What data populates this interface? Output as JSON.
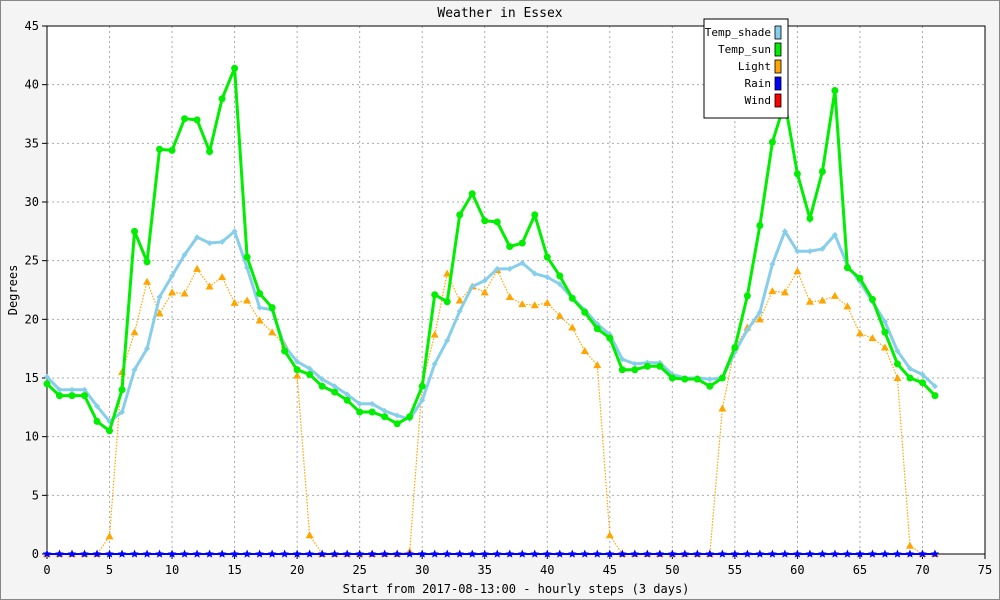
{
  "chart_data": {
    "type": "line",
    "title": "Weather in Essex",
    "xlabel": "Start from 2017-08-13:00 - hourly steps (3 days)",
    "ylabel": "Degrees",
    "xlim": [
      0,
      75
    ],
    "ylim": [
      0,
      45
    ],
    "xticks": [
      0,
      5,
      10,
      15,
      20,
      25,
      30,
      35,
      40,
      45,
      50,
      55,
      60,
      65,
      70,
      75
    ],
    "yticks": [
      0,
      5,
      10,
      15,
      20,
      25,
      30,
      35,
      40,
      45
    ],
    "grid": true,
    "legend_position": "top-right",
    "x": [
      0,
      1,
      2,
      3,
      4,
      5,
      6,
      7,
      8,
      9,
      10,
      11,
      12,
      13,
      14,
      15,
      16,
      17,
      18,
      19,
      20,
      21,
      22,
      23,
      24,
      25,
      26,
      27,
      28,
      29,
      30,
      31,
      32,
      33,
      34,
      35,
      36,
      37,
      38,
      39,
      40,
      41,
      42,
      43,
      44,
      45,
      46,
      47,
      48,
      49,
      50,
      51,
      52,
      53,
      54,
      55,
      56,
      57,
      58,
      59,
      60,
      61,
      62,
      63,
      64,
      65,
      66,
      67,
      68,
      69,
      70,
      71
    ],
    "series": [
      {
        "name": "Temp_shade",
        "color": "#87ceeb",
        "marker": "diamond",
        "values": [
          15.1,
          14.0,
          14.0,
          14.0,
          12.6,
          11.3,
          12.1,
          15.7,
          17.5,
          21.9,
          23.7,
          25.5,
          27.0,
          26.5,
          26.6,
          27.5,
          24.4,
          21.0,
          20.8,
          17.7,
          16.4,
          15.8,
          14.9,
          14.3,
          13.6,
          12.8,
          12.8,
          12.2,
          11.8,
          11.5,
          13.1,
          16.2,
          18.2,
          20.7,
          22.8,
          23.3,
          24.3,
          24.3,
          24.8,
          23.9,
          23.6,
          23.0,
          21.8,
          20.8,
          19.6,
          18.7,
          16.6,
          16.2,
          16.3,
          16.3,
          15.3,
          15.0,
          15.0,
          14.9,
          15.0,
          17.2,
          19.1,
          20.6,
          24.7,
          27.5,
          25.8,
          25.8,
          26.0,
          27.2,
          24.6,
          23.2,
          21.5,
          19.8,
          17.3,
          15.8,
          15.3,
          14.3
        ]
      },
      {
        "name": "Temp_sun",
        "color": "#00ee00",
        "marker": "circle",
        "values": [
          14.5,
          13.5,
          13.5,
          13.5,
          11.3,
          10.5,
          14.0,
          27.5,
          24.9,
          34.5,
          34.4,
          37.1,
          37.0,
          34.3,
          38.8,
          41.4,
          25.3,
          22.2,
          21.0,
          17.3,
          15.7,
          15.3,
          14.3,
          13.8,
          13.1,
          12.1,
          12.1,
          11.7,
          11.1,
          11.7,
          14.3,
          22.1,
          21.5,
          28.9,
          30.7,
          28.4,
          28.3,
          26.2,
          26.5,
          28.9,
          25.3,
          23.7,
          21.8,
          20.6,
          19.2,
          18.4,
          15.7,
          15.7,
          16.0,
          16.0,
          15.0,
          14.9,
          14.9,
          14.3,
          15.0,
          17.6,
          22.0,
          28.0,
          35.1,
          38.5,
          32.4,
          28.6,
          32.6,
          39.5,
          24.4,
          23.5,
          21.7,
          18.9,
          16.2,
          15.0,
          14.6,
          13.5
        ]
      },
      {
        "name": "Light",
        "color": "#ffa500",
        "marker": "triangle",
        "values": [
          0,
          0,
          0,
          0,
          0,
          1.5,
          15.5,
          18.9,
          23.2,
          20.5,
          22.3,
          22.2,
          24.3,
          22.8,
          23.6,
          21.4,
          21.6,
          19.9,
          18.9,
          17.8,
          15.2,
          1.6,
          0,
          0,
          0,
          0,
          0,
          0,
          0,
          0.2,
          14.5,
          18.7,
          23.9,
          21.6,
          22.8,
          22.3,
          24.2,
          21.9,
          21.3,
          21.2,
          21.4,
          20.3,
          19.3,
          17.3,
          16.1,
          1.6,
          0,
          0,
          0,
          0,
          0,
          0,
          0,
          0,
          12.4,
          17.6,
          19.3,
          20.0,
          22.4,
          22.3,
          24.1,
          21.5,
          21.6,
          22.0,
          21.1,
          18.8,
          18.4,
          17.6,
          15.0,
          0.7,
          0,
          0
        ]
      },
      {
        "name": "Rain",
        "color": "#0000ff",
        "marker": "star",
        "values": [
          0,
          0,
          0,
          0,
          0,
          0,
          0,
          0,
          0,
          0,
          0,
          0,
          0,
          0,
          0,
          0,
          0,
          0,
          0,
          0,
          0,
          0,
          0,
          0,
          0,
          0,
          0,
          0,
          0,
          0,
          0,
          0,
          0,
          0,
          0,
          0,
          0,
          0,
          0,
          0,
          0,
          0,
          0,
          0,
          0,
          0,
          0,
          0,
          0,
          0,
          0,
          0,
          0,
          0,
          0,
          0,
          0,
          0,
          0,
          0,
          0,
          0,
          0,
          0,
          0,
          0,
          0,
          0,
          0,
          0,
          0,
          0
        ]
      },
      {
        "name": "Wind",
        "color": "#ff0000",
        "marker": "none",
        "values": [
          0,
          0,
          0,
          0,
          0,
          0,
          0,
          0,
          0,
          0,
          0,
          0,
          0,
          0,
          0,
          0,
          0,
          0,
          0,
          0,
          0,
          0,
          0,
          0,
          0,
          0,
          0,
          0,
          0,
          0,
          0,
          0,
          0,
          0,
          0,
          0,
          0,
          0,
          0,
          0,
          0,
          0,
          0,
          0,
          0,
          0,
          0,
          0,
          0,
          0,
          0,
          0,
          0,
          0,
          0,
          0,
          0,
          0,
          0,
          0,
          0,
          0,
          0,
          0,
          0,
          0,
          0,
          0,
          0,
          0,
          0,
          0
        ]
      }
    ]
  }
}
